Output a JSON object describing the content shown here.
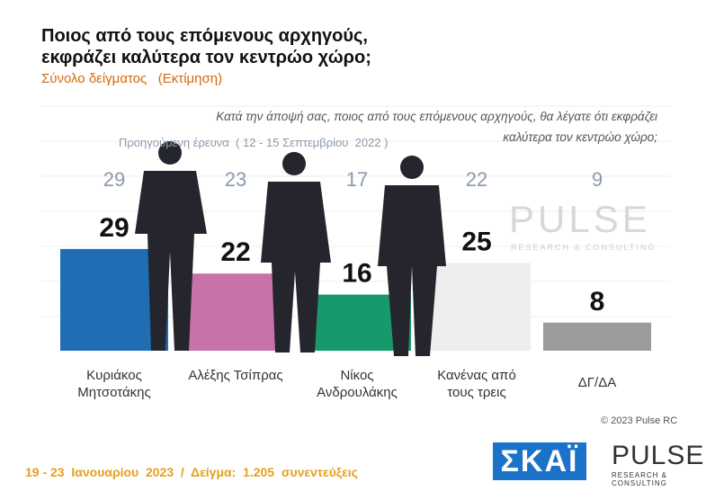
{
  "chart_data": {
    "type": "bar",
    "title": "Ποιος από τους επόμενους αρχηγούς, εκφράζει καλύτερα τον κεντρώο χώρο;",
    "subtitle": "Σύνολο δείγματος   (Εκτίμηση)",
    "question": "Κατά την άποψή σας, ποιος από τους επόμενους αρχηγούς, θα λέγατε ότι εκφράζει καλύτερα τον κεντρώο χώρο;",
    "previous_label": "Προηγούμενη έρευνα  ( 12 - 15 Σεπτεμβρίου  2022 )",
    "categories": [
      "Κυριάκος Μητσοτάκης",
      "Αλέξης Τσίπρας",
      "Νίκος Ανδρουλάκης",
      "Κανένας από τους τρεις",
      "ΔΓ/ΔΑ"
    ],
    "values": [
      29,
      22,
      16,
      25,
      8
    ],
    "colors": [
      "#1f6db3",
      "#c872aa",
      "#17996b",
      "#eeeeee",
      "#9b9b9b"
    ],
    "previous_values": [
      29,
      23,
      17,
      22,
      9
    ],
    "footer": "19 - 23  Ιανουαρίου  2023  /  Δείγμα:  1.205  συνεντεύξεις",
    "copyright": "© 2023 Pulse RC",
    "logo_skai": "ΣΚΑΪ",
    "logo_pulse": "PULSE",
    "logo_pulse_sub": "RESEARCH & CONSULTING"
  }
}
